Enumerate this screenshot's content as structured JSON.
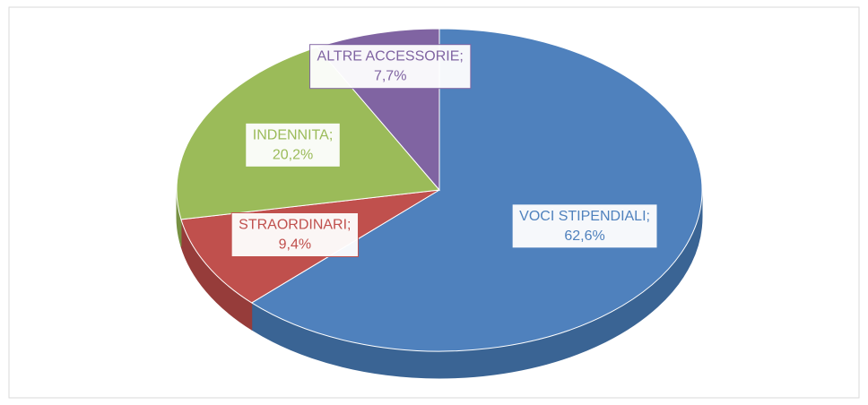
{
  "chart_data": {
    "type": "pie3d",
    "categories": [
      "VOCI STIPENDIALI",
      "STRAORDINARI",
      "INDENNITA",
      "ALTRE ACCESSORIE"
    ],
    "values": [
      62.6,
      9.4,
      20.2,
      7.7
    ],
    "value_labels": [
      "62,6%",
      "9,4%",
      "20,2%",
      "7,7%"
    ],
    "label_separator": ";",
    "colors": [
      "#4f81bd",
      "#c0504d",
      "#9bbb59",
      "#8064a2"
    ],
    "side_colors": [
      "#3a6494",
      "#963c3a",
      "#779143",
      "#624c7e"
    ]
  }
}
